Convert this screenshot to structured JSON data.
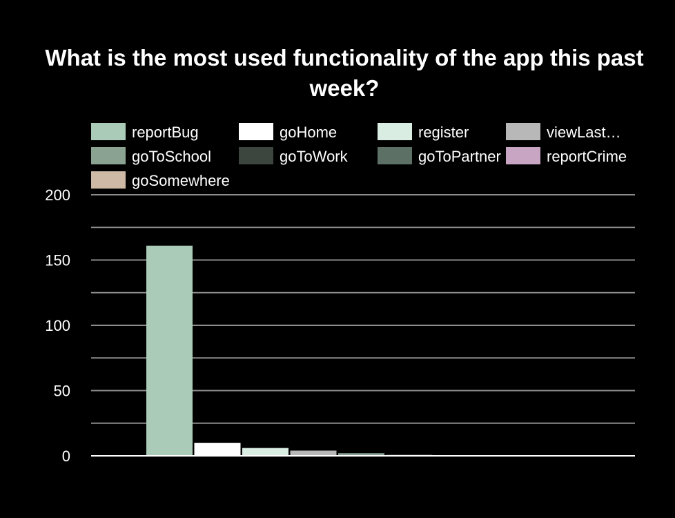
{
  "chart_data": {
    "type": "bar",
    "title": "What is the most used functionality of the app this past week?",
    "xlabel": "",
    "ylabel": "",
    "ylim": [
      0,
      200
    ],
    "yticks": [
      0,
      50,
      100,
      150,
      200
    ],
    "grid": true,
    "legend_position": "top",
    "background": "#000000",
    "series": [
      {
        "name": "reportBug",
        "legend_label": "reportBug",
        "value": 161,
        "color": "#a9cbb7"
      },
      {
        "name": "goHome",
        "legend_label": "goHome",
        "value": 10,
        "color": "#ffffff"
      },
      {
        "name": "register",
        "legend_label": "register",
        "value": 6,
        "color": "#d9ede3"
      },
      {
        "name": "viewLast…",
        "legend_label": "viewLast…",
        "value": 4,
        "color": "#b8b8b8"
      },
      {
        "name": "goToSchool",
        "legend_label": "goToSchool",
        "value": 2,
        "color": "#8aa291"
      },
      {
        "name": "goToWork",
        "legend_label": "goToWork",
        "value": 1,
        "color": "#3c463f"
      },
      {
        "name": "goToPartner",
        "legend_label": "goToPartner",
        "value": 0,
        "color": "#5c7065"
      },
      {
        "name": "reportCrime",
        "legend_label": "reportCrime",
        "value": 0,
        "color": "#c8a6c3"
      },
      {
        "name": "goSomewhere",
        "legend_label": "goSomewhere",
        "value": 0,
        "color": "#cdb9a5"
      }
    ]
  }
}
